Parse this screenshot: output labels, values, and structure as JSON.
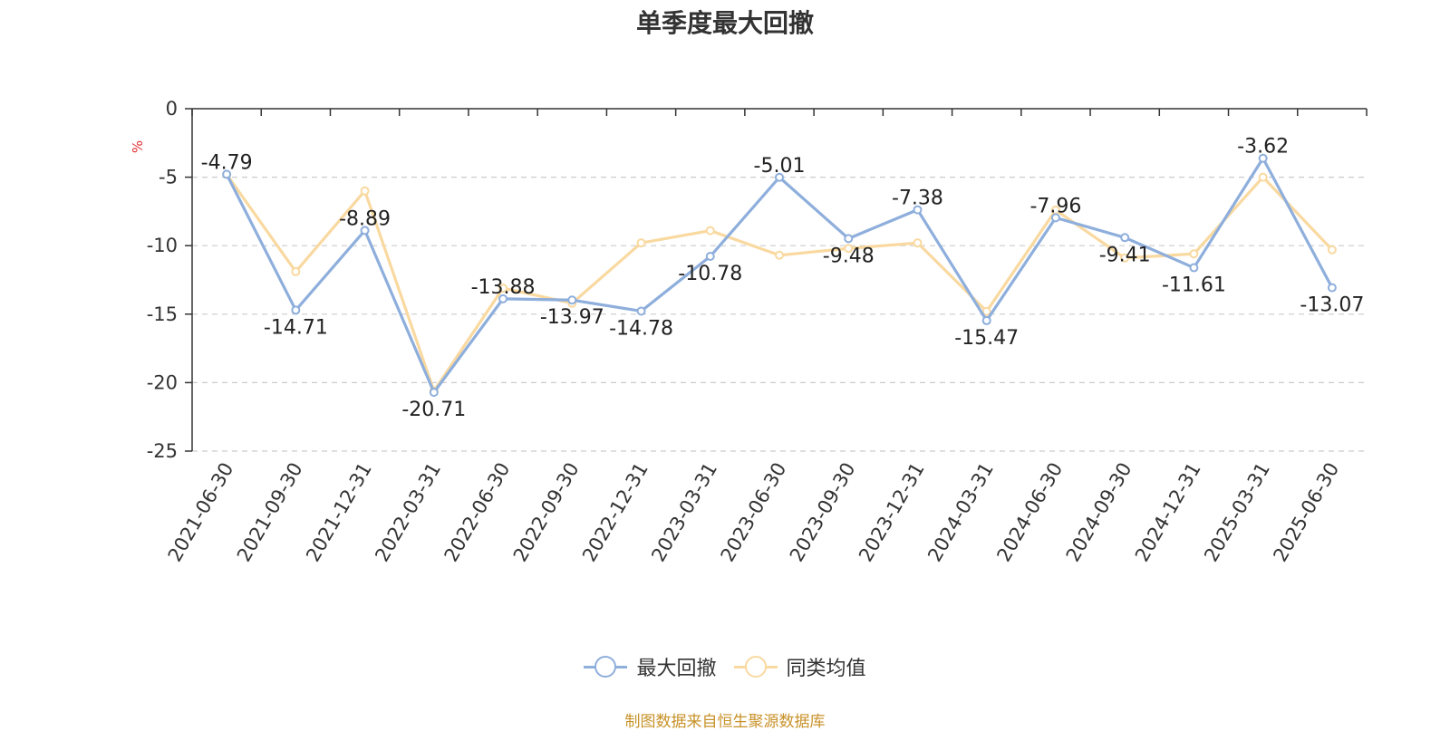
{
  "title": "单季度最大回撤",
  "source": "制图数据来自恒生聚源数据库",
  "chart_data": {
    "type": "line",
    "ylabel": "%",
    "ylim": [
      -25,
      0
    ],
    "yticks": [
      0,
      -5,
      -10,
      -15,
      -20,
      -25
    ],
    "grid": true,
    "legend_position": "bottom-center",
    "categories": [
      "2021-06-30",
      "2021-09-30",
      "2021-12-31",
      "2022-03-31",
      "2022-06-30",
      "2022-09-30",
      "2022-12-31",
      "2023-03-31",
      "2023-06-30",
      "2023-09-30",
      "2023-12-31",
      "2024-03-31",
      "2024-06-30",
      "2024-09-30",
      "2024-12-31",
      "2025-03-31",
      "2025-06-30"
    ],
    "series": [
      {
        "name": "最大回撤",
        "color": "#8eaedc",
        "values": [
          -4.79,
          -14.71,
          -8.89,
          -20.71,
          -13.88,
          -13.97,
          -14.78,
          -10.78,
          -5.01,
          -9.48,
          -7.38,
          -15.47,
          -7.96,
          -9.41,
          -11.61,
          -3.62,
          -13.07
        ],
        "labels": [
          "-4.79",
          "-14.71",
          "-8.89",
          "-20.71",
          "-13.88",
          "-13.97",
          "-14.78",
          "-10.78",
          "-5.01",
          "-9.48",
          "-7.38",
          "-15.47",
          "-7.96",
          "-9.41",
          "-11.61",
          "-3.62",
          "-13.07"
        ]
      },
      {
        "name": "同类均值",
        "color": "#f9d9a0",
        "values": [
          -4.8,
          -11.9,
          -6.0,
          -20.6,
          -13.1,
          -14.2,
          -9.8,
          -8.9,
          -10.7,
          -10.2,
          -9.8,
          -14.8,
          -7.4,
          -10.9,
          -10.6,
          -5.0,
          -10.3
        ]
      }
    ]
  },
  "legend": [
    {
      "name": "最大回撤",
      "color": "#8eaedc"
    },
    {
      "name": "同类均值",
      "color": "#f9d9a0"
    }
  ]
}
